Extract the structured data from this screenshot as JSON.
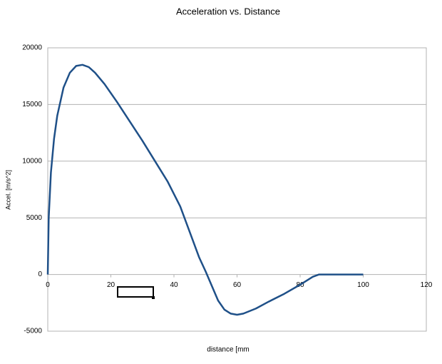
{
  "chart_data": {
    "type": "line",
    "title": "Acceleration vs. Distance",
    "x_label": "distance [mm",
    "y_label": "Accel. [m/s^2]",
    "x": [
      0,
      0.3,
      1,
      2,
      3,
      5,
      7,
      9,
      11,
      13,
      15,
      18,
      22,
      26,
      30,
      34,
      38,
      42,
      46,
      48,
      50,
      52,
      54,
      56,
      58,
      60,
      62,
      66,
      70,
      75,
      80,
      84,
      86,
      90,
      100
    ],
    "values": [
      0,
      5000,
      9000,
      12000,
      14000,
      16500,
      17800,
      18400,
      18500,
      18300,
      17800,
      16800,
      15200,
      13500,
      11800,
      10000,
      8200,
      6000,
      3000,
      1500,
      300,
      -1000,
      -2300,
      -3100,
      -3450,
      -3550,
      -3450,
      -3000,
      -2400,
      -1700,
      -900,
      -200,
      0,
      0,
      0
    ],
    "color": "#1f5088",
    "xlim": [
      0,
      120
    ],
    "xticks": [
      0,
      20,
      40,
      60,
      80,
      100,
      120
    ],
    "ylim": [
      -5000,
      20000
    ],
    "yticks": [
      -5000,
      0,
      5000,
      10000,
      15000,
      20000
    ],
    "grid": true
  }
}
